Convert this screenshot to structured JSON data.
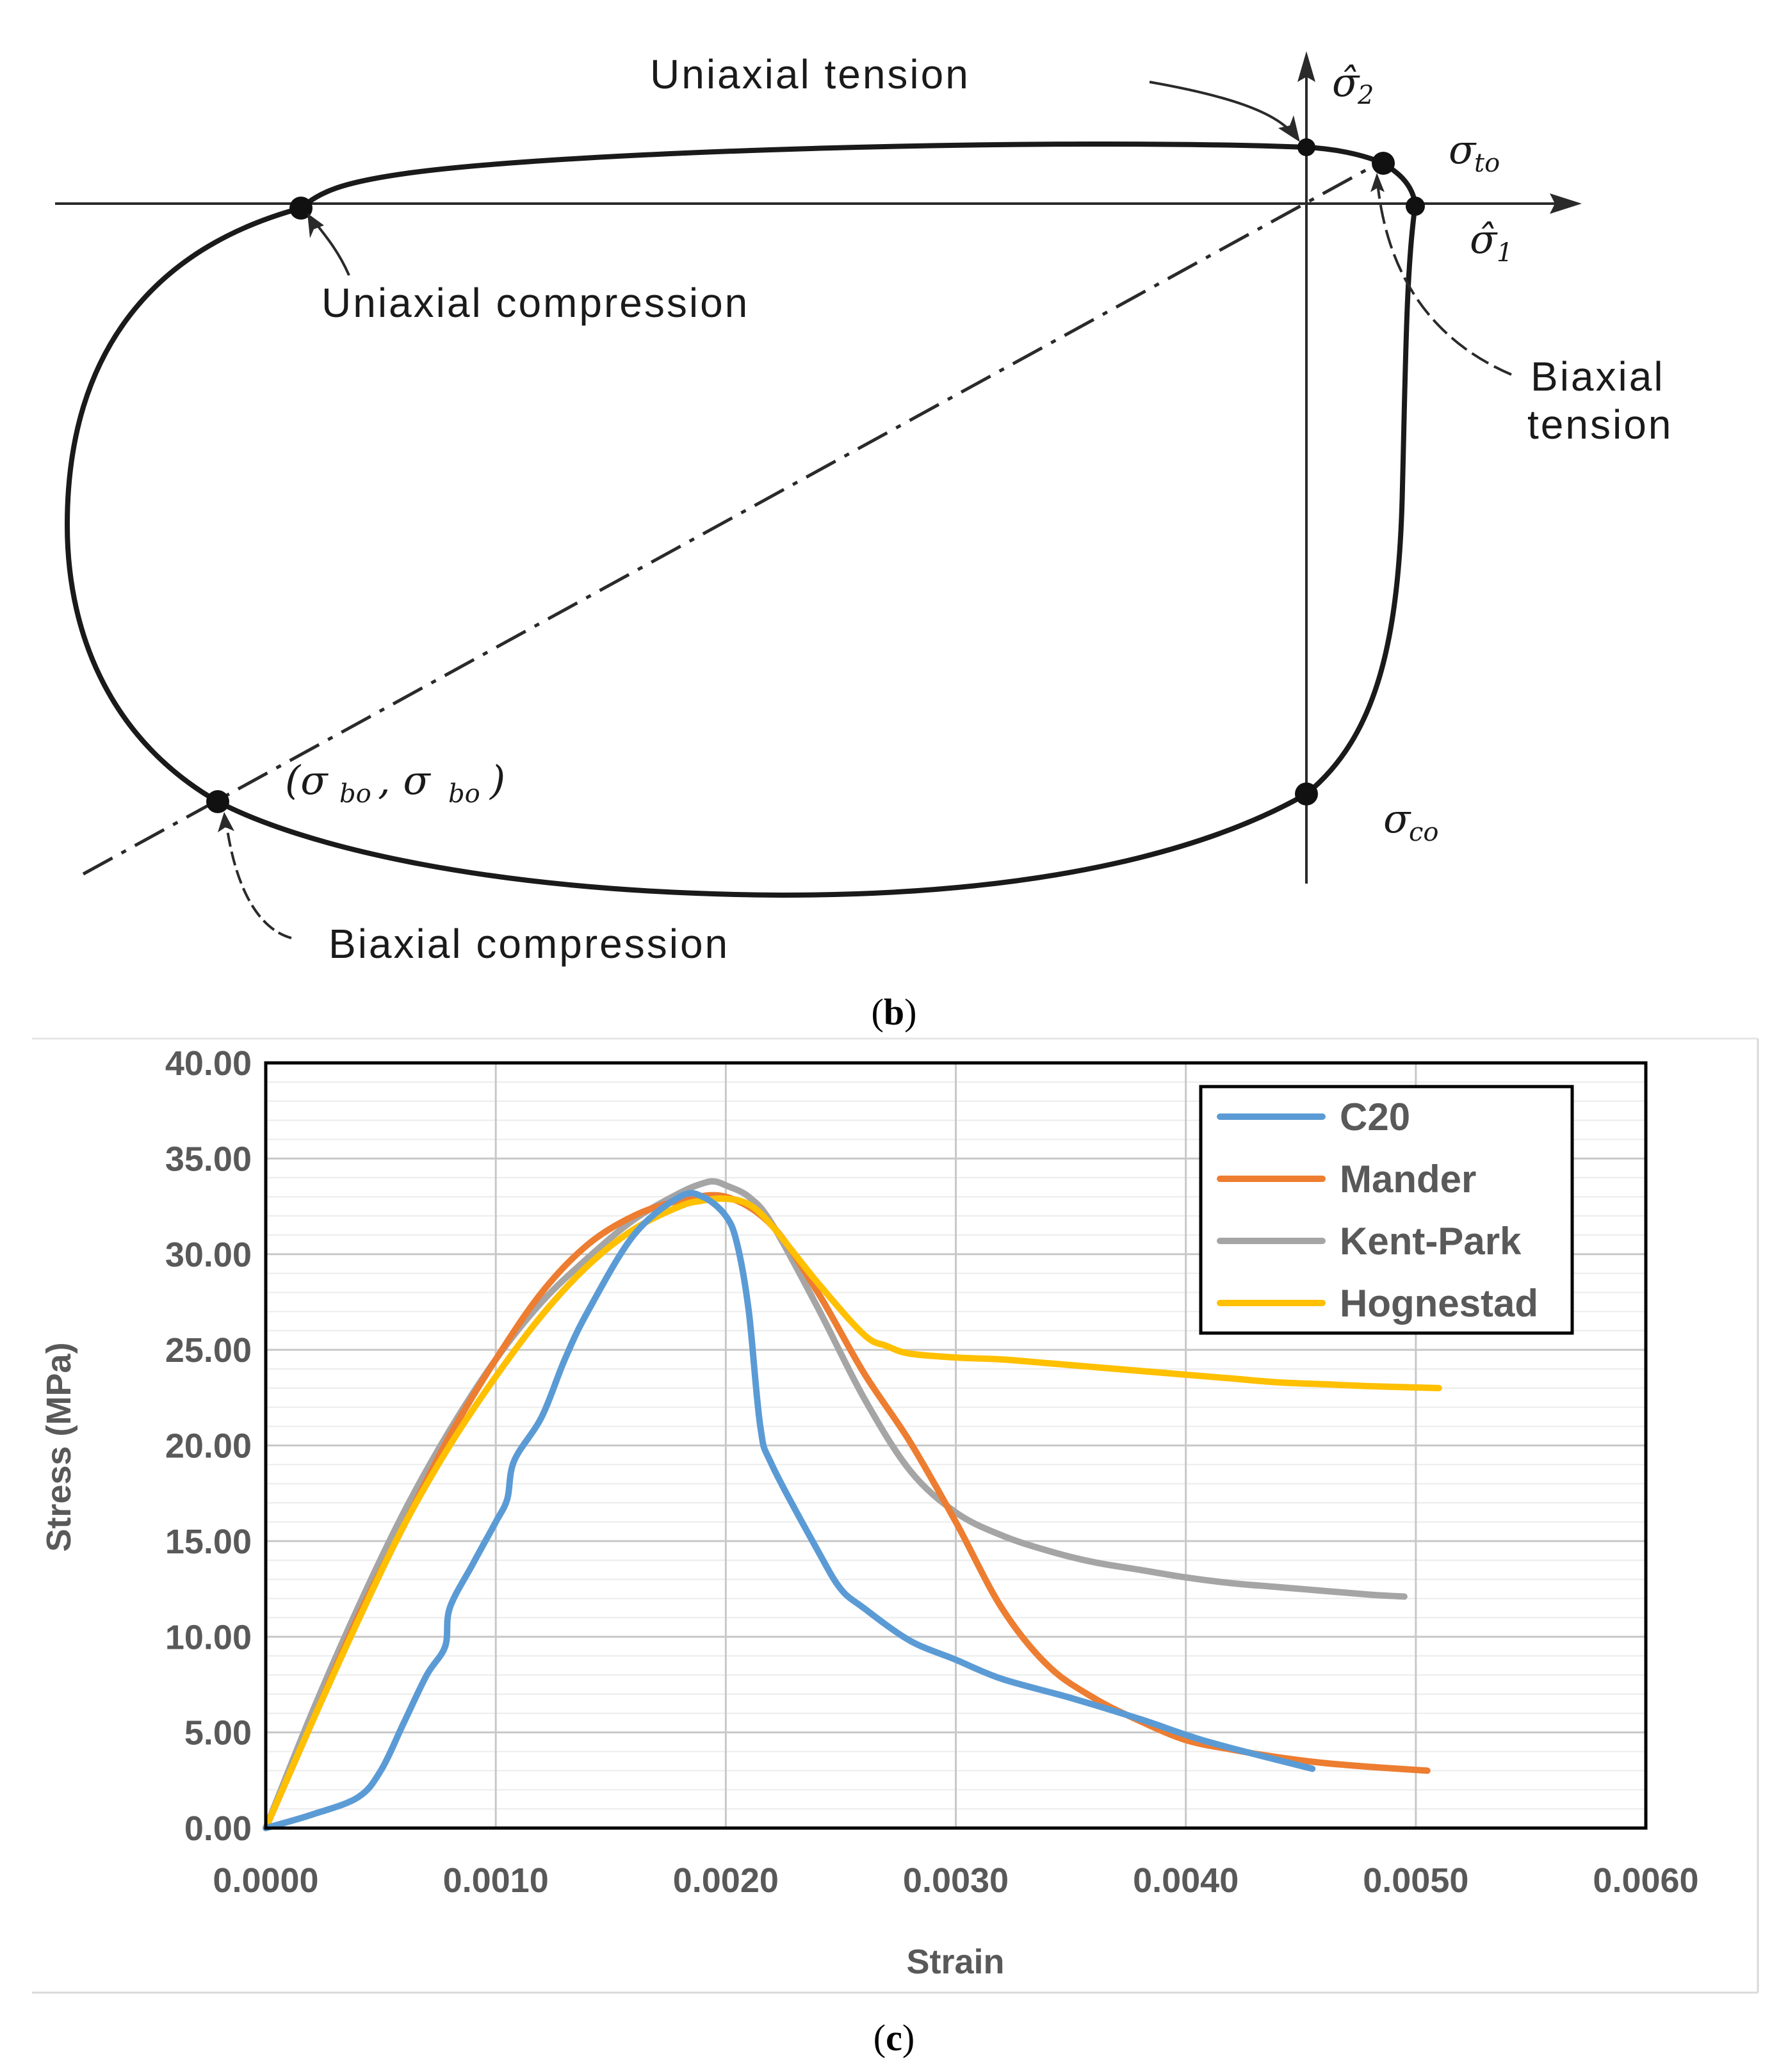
{
  "panel_b": {
    "tag_open": "(",
    "tag_letter": "b",
    "tag_close": ")",
    "labels": {
      "uniaxial_tension": "Uniaxial tension",
      "uniaxial_compression": "Uniaxial compression",
      "biaxial_tension_line1": "Biaxial",
      "biaxial_tension_line2": "tension",
      "biaxial_compression": "Biaxial compression"
    },
    "symbols": {
      "sigma2_axis": "σ̂",
      "sigma2_sub": "2",
      "sigma1_axis": "σ̂",
      "sigma1_sub": "1",
      "sigma_to": "σ",
      "sigma_to_sub": "to",
      "sigma_co": "σ",
      "sigma_co_sub": "co",
      "sigma_bo_pair": "(σ",
      "sigma_bo_sub_a": "bo",
      "sigma_bo_mid": ", σ",
      "sigma_bo_sub_b": "bo",
      "sigma_bo_close": ")"
    }
  },
  "panel_c": {
    "tag_open": "(",
    "tag_letter": "c",
    "tag_close": ")"
  },
  "chart_data": {
    "type": "line",
    "title": "",
    "xlabel": "Strain",
    "ylabel": "Stress (MPa)",
    "xlim": [
      0,
      0.006
    ],
    "ylim": [
      0,
      40
    ],
    "grid": true,
    "legend_position": "top-right",
    "x_ticks": [
      0,
      0.001,
      0.002,
      0.003,
      0.004,
      0.005,
      0.006
    ],
    "x_tick_labels": [
      "0.0000",
      "0.0010",
      "0.0020",
      "0.0030",
      "0.0040",
      "0.0050",
      "0.0060"
    ],
    "y_ticks": [
      0,
      5,
      10,
      15,
      20,
      25,
      30,
      35,
      40
    ],
    "y_tick_labels": [
      "0.00",
      "5.00",
      "10.00",
      "15.00",
      "20.00",
      "25.00",
      "30.00",
      "35.00",
      "40.00"
    ],
    "series": [
      {
        "name": "C20",
        "color": "#5B9BD5",
        "x": [
          0,
          0.0002,
          0.0004,
          0.0005,
          0.0006,
          0.0007,
          0.00078,
          0.0008,
          0.0009,
          0.001,
          0.00105,
          0.00108,
          0.0012,
          0.0013,
          0.0014,
          0.0016,
          0.0018,
          0.0019,
          0.002,
          0.00205,
          0.0021,
          0.00215,
          0.0022,
          0.0024,
          0.0025,
          0.0026,
          0.0028,
          0.003,
          0.0032,
          0.0035,
          0.0038,
          0.0041,
          0.00455
        ],
        "y": [
          0,
          0.7,
          1.6,
          3.0,
          5.5,
          8.0,
          9.5,
          11.5,
          13.8,
          16.0,
          17.2,
          19.2,
          21.5,
          24.5,
          27.0,
          31.0,
          33.0,
          33.0,
          32.0,
          30.5,
          27.0,
          21.0,
          19.0,
          14.5,
          12.5,
          11.5,
          9.8,
          8.8,
          7.8,
          6.8,
          5.7,
          4.5,
          3.1
        ]
      },
      {
        "name": "Mander",
        "color": "#ED7D31",
        "x": [
          0,
          0.0002,
          0.0004,
          0.0006,
          0.0008,
          0.001,
          0.0012,
          0.0014,
          0.0016,
          0.0018,
          0.002,
          0.0022,
          0.0024,
          0.0026,
          0.0028,
          0.003,
          0.0032,
          0.0034,
          0.0036,
          0.0038,
          0.004,
          0.0042,
          0.0044,
          0.0046,
          0.0048,
          0.00505
        ],
        "y": [
          0,
          5.5,
          11.0,
          15.8,
          20.5,
          24.5,
          28.0,
          30.5,
          32.0,
          32.8,
          33.0,
          31.5,
          28.0,
          23.8,
          20.2,
          16.0,
          11.5,
          8.5,
          6.8,
          5.6,
          4.6,
          4.1,
          3.7,
          3.4,
          3.2,
          3.0
        ]
      },
      {
        "name": "Kent-Park",
        "color": "#A5A5A5",
        "x": [
          0,
          0.0002,
          0.0004,
          0.0006,
          0.0008,
          0.001,
          0.0012,
          0.0014,
          0.0016,
          0.0018,
          0.0019,
          0.00195,
          0.002,
          0.0021,
          0.0022,
          0.0024,
          0.0026,
          0.0028,
          0.003,
          0.0032,
          0.0034,
          0.0036,
          0.0038,
          0.004,
          0.0042,
          0.0044,
          0.0046,
          0.0048,
          0.00495
        ],
        "y": [
          0,
          6.0,
          11.5,
          16.5,
          20.8,
          24.5,
          27.5,
          29.8,
          31.8,
          33.2,
          33.7,
          33.8,
          33.6,
          33.0,
          31.6,
          27.2,
          22.5,
          18.7,
          16.5,
          15.3,
          14.5,
          13.9,
          13.5,
          13.1,
          12.8,
          12.6,
          12.4,
          12.2,
          12.1
        ]
      },
      {
        "name": "Hognestad",
        "color": "#FFC000",
        "x": [
          0,
          0.0002,
          0.0004,
          0.0006,
          0.0008,
          0.001,
          0.0012,
          0.0014,
          0.0016,
          0.0018,
          0.0019,
          0.002,
          0.0021,
          0.0022,
          0.0024,
          0.0026,
          0.0027,
          0.0028,
          0.003,
          0.0032,
          0.0034,
          0.0036,
          0.0038,
          0.004,
          0.0042,
          0.0044,
          0.0046,
          0.0048,
          0.0051
        ],
        "y": [
          0,
          5.5,
          10.8,
          15.8,
          20.0,
          23.6,
          26.8,
          29.4,
          31.3,
          32.5,
          32.8,
          32.9,
          32.6,
          31.5,
          28.5,
          25.8,
          25.2,
          24.8,
          24.6,
          24.5,
          24.3,
          24.1,
          23.9,
          23.7,
          23.5,
          23.3,
          23.2,
          23.1,
          23.0
        ]
      }
    ]
  }
}
